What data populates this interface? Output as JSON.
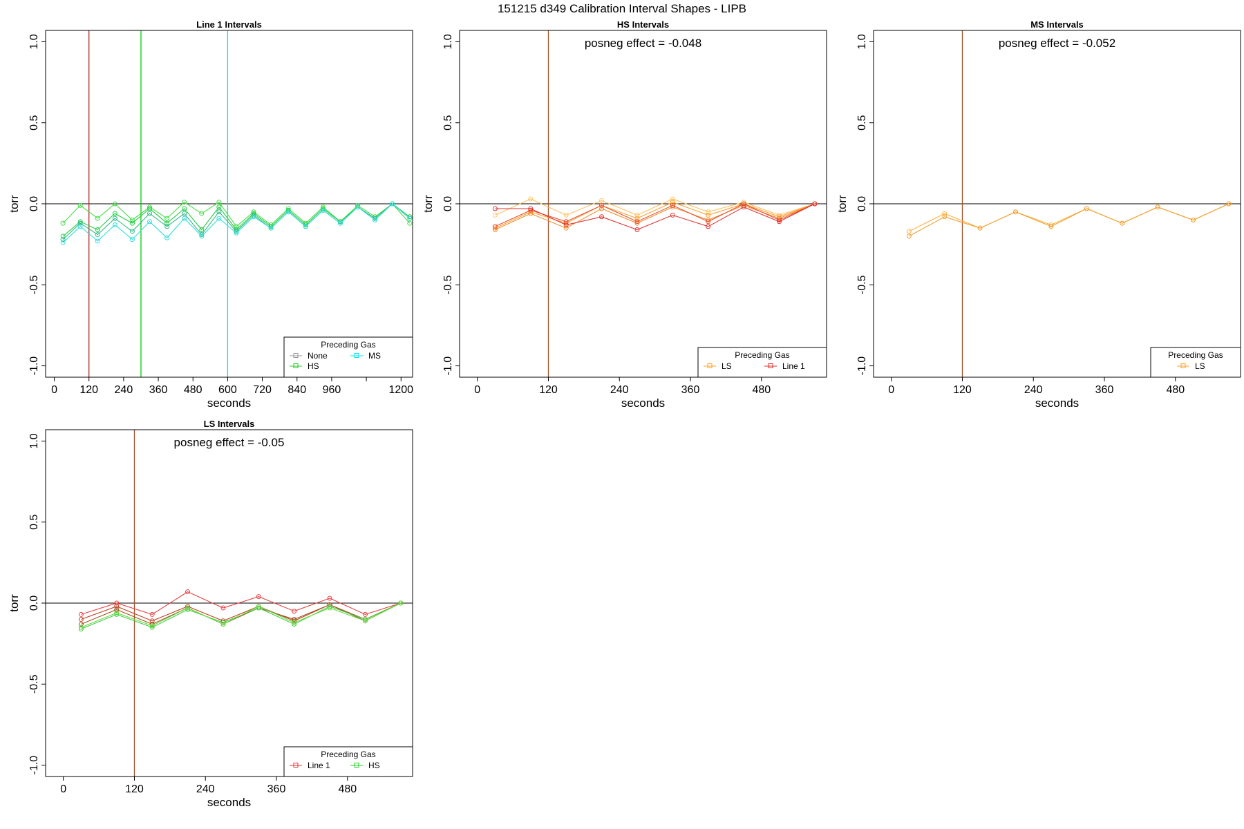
{
  "figure": {
    "title": "151215   d349   Calibration Interval Shapes - LIPB"
  },
  "chart_data": [
    {
      "type": "line",
      "title": "Line 1 Intervals",
      "xlabel": "seconds",
      "ylabel": "torr",
      "xlim": [
        -30,
        1240
      ],
      "ylim": [
        -1.07,
        1.07
      ],
      "xticks": [
        0,
        120,
        240,
        360,
        480,
        600,
        720,
        840,
        960,
        1080,
        1200
      ],
      "xtick_labels": [
        "0",
        "120",
        "240",
        "360",
        "480",
        "600",
        "720",
        "840",
        "960",
        "",
        "1200"
      ],
      "yticks": [
        -1.0,
        -0.5,
        0.0,
        0.5,
        1.0
      ],
      "ytick_labels": [
        "-1.0",
        "-0.5",
        "0.0",
        "0.5",
        "1.0"
      ],
      "hline": 0,
      "vlines": [
        {
          "x": 120,
          "color": "#b22222"
        },
        {
          "x": 300,
          "color": "#00cc00"
        },
        {
          "x": 600,
          "color": "#00e5ee"
        }
      ],
      "annotation": "",
      "legend": {
        "title": "Preceding Gas",
        "position": "bottom-right",
        "columns": 2,
        "entries": [
          {
            "label": "None",
            "color": "#999999"
          },
          {
            "label": "MS",
            "color": "#00e5ee"
          },
          {
            "label": "HS",
            "color": "#22cc22"
          }
        ]
      },
      "x": [
        30,
        90,
        150,
        210,
        270,
        330,
        390,
        450,
        510,
        570,
        630,
        690,
        750,
        810,
        870,
        930,
        990,
        1050,
        1110,
        1170,
        1230
      ],
      "series": [
        {
          "name": "HS",
          "color": "#44dd44",
          "values": [
            -0.12,
            -0.01,
            -0.09,
            0.0,
            -0.1,
            -0.02,
            -0.09,
            0.01,
            -0.06,
            0.01,
            -0.14,
            -0.05,
            -0.13,
            -0.03,
            -0.12,
            -0.02,
            -0.11,
            -0.01,
            -0.08,
            0.0,
            -0.12
          ]
        },
        {
          "name": "HS",
          "color": "#22cc44",
          "values": [
            -0.2,
            -0.11,
            -0.16,
            -0.06,
            -0.12,
            -0.03,
            -0.12,
            -0.03,
            -0.16,
            -0.02,
            -0.16,
            -0.06,
            -0.14,
            -0.04,
            -0.13,
            -0.03,
            -0.11,
            -0.02,
            -0.09,
            0.0,
            -0.08
          ]
        },
        {
          "name": "None",
          "color": "#33bb88",
          "values": [
            -0.22,
            -0.12,
            -0.19,
            -0.09,
            -0.17,
            -0.06,
            -0.14,
            -0.06,
            -0.19,
            -0.05,
            -0.17,
            -0.07,
            -0.15,
            -0.05,
            -0.14,
            -0.04,
            -0.12,
            -0.02,
            -0.09,
            0.0,
            -0.09
          ]
        },
        {
          "name": "MS",
          "color": "#33dddd",
          "values": [
            -0.24,
            -0.14,
            -0.23,
            -0.13,
            -0.22,
            -0.11,
            -0.21,
            -0.09,
            -0.2,
            -0.09,
            -0.18,
            -0.08,
            -0.15,
            -0.05,
            -0.14,
            -0.04,
            -0.12,
            -0.02,
            -0.1,
            0.0,
            -0.09
          ]
        }
      ]
    },
    {
      "type": "line",
      "title": "HS Intervals",
      "xlabel": "seconds",
      "ylabel": "torr",
      "xlim": [
        -30,
        590
      ],
      "ylim": [
        -1.07,
        1.07
      ],
      "xticks": [
        0,
        120,
        240,
        360,
        480
      ],
      "xtick_labels": [
        "0",
        "120",
        "240",
        "360",
        "480"
      ],
      "yticks": [
        -1.0,
        -0.5,
        0.0,
        0.5,
        1.0
      ],
      "ytick_labels": [
        "-1.0",
        "-0.5",
        "0.0",
        "0.5",
        "1.0"
      ],
      "hline": 0,
      "vlines": [
        {
          "x": 120,
          "color": "#a0522d"
        }
      ],
      "annotation": "posneg effect = -0.048",
      "legend": {
        "title": "Preceding Gas",
        "position": "bottom-right",
        "columns": 2,
        "entries": [
          {
            "label": "LS",
            "color": "#ffa020"
          },
          {
            "label": "Line 1",
            "color": "#e03030"
          }
        ]
      },
      "x": [
        30,
        90,
        150,
        210,
        270,
        330,
        390,
        450,
        510,
        570
      ],
      "series": [
        {
          "name": "LS",
          "color": "#ffc060",
          "values": [
            -0.07,
            0.03,
            -0.07,
            0.02,
            -0.07,
            0.03,
            -0.05,
            0.01,
            -0.07,
            0.0
          ]
        },
        {
          "name": "LS",
          "color": "#ffa030",
          "values": [
            -0.15,
            -0.05,
            -0.12,
            -0.01,
            -0.09,
            0.01,
            -0.07,
            0.0,
            -0.08,
            0.0
          ]
        },
        {
          "name": "LS",
          "color": "#f09030",
          "values": [
            -0.16,
            -0.06,
            -0.15,
            -0.03,
            -0.12,
            -0.02,
            -0.1,
            -0.01,
            -0.09,
            0.0
          ]
        },
        {
          "name": "Line 1",
          "color": "#e85030",
          "values": [
            -0.14,
            -0.04,
            -0.11,
            -0.01,
            -0.11,
            -0.01,
            -0.11,
            0.0,
            -0.1,
            0.0
          ]
        },
        {
          "name": "Line 1",
          "color": "#e03030",
          "values": [
            -0.03,
            -0.03,
            -0.13,
            -0.08,
            -0.16,
            -0.07,
            -0.14,
            -0.02,
            -0.11,
            0.0
          ]
        }
      ]
    },
    {
      "type": "line",
      "title": "MS Intervals",
      "xlabel": "seconds",
      "ylabel": "torr",
      "xlim": [
        -30,
        590
      ],
      "ylim": [
        -1.07,
        1.07
      ],
      "xticks": [
        0,
        120,
        240,
        360,
        480
      ],
      "xtick_labels": [
        "0",
        "120",
        "240",
        "360",
        "480"
      ],
      "yticks": [
        -1.0,
        -0.5,
        0.0,
        0.5,
        1.0
      ],
      "ytick_labels": [
        "-1.0",
        "-0.5",
        "0.0",
        "0.5",
        "1.0"
      ],
      "hline": 0,
      "vlines": [
        {
          "x": 120,
          "color": "#a0522d"
        }
      ],
      "annotation": "posneg effect = -0.052",
      "legend": {
        "title": "Preceding Gas",
        "position": "bottom-right",
        "columns": 1,
        "entries": [
          {
            "label": "LS",
            "color": "#ffa020"
          }
        ]
      },
      "x": [
        30,
        90,
        150,
        210,
        270,
        330,
        390,
        450,
        510,
        570
      ],
      "series": [
        {
          "name": "LS",
          "color": "#ffb040",
          "values": [
            -0.17,
            -0.06,
            -0.15,
            -0.05,
            -0.13,
            -0.03,
            -0.12,
            -0.02,
            -0.1,
            0.0
          ]
        },
        {
          "name": "LS",
          "color": "#f0a030",
          "values": [
            -0.2,
            -0.08,
            -0.15,
            -0.05,
            -0.14,
            -0.03,
            -0.12,
            -0.02,
            -0.1,
            0.0
          ]
        }
      ]
    },
    {
      "type": "line",
      "title": "LS Intervals",
      "xlabel": "seconds",
      "ylabel": "torr",
      "xlim": [
        -30,
        590
      ],
      "ylim": [
        -1.07,
        1.07
      ],
      "xticks": [
        0,
        120,
        240,
        360,
        480
      ],
      "xtick_labels": [
        "0",
        "120",
        "240",
        "360",
        "480"
      ],
      "yticks": [
        -1.0,
        -0.5,
        0.0,
        0.5,
        1.0
      ],
      "ytick_labels": [
        "-1.0",
        "-0.5",
        "0.0",
        "0.5",
        "1.0"
      ],
      "hline": 0,
      "vlines": [
        {
          "x": 120,
          "color": "#a0522d"
        }
      ],
      "annotation": "posneg effect = -0.05",
      "legend": {
        "title": "Preceding Gas",
        "position": "bottom-right",
        "columns": 2,
        "entries": [
          {
            "label": "Line 1",
            "color": "#e03030"
          },
          {
            "label": "HS",
            "color": "#22cc22"
          }
        ]
      },
      "x": [
        30,
        90,
        150,
        210,
        270,
        330,
        390,
        450,
        510,
        570
      ],
      "series": [
        {
          "name": "Line 1",
          "color": "#e84040",
          "values": [
            -0.07,
            0.0,
            -0.07,
            0.07,
            -0.03,
            0.04,
            -0.05,
            0.03,
            -0.07,
            0.0
          ]
        },
        {
          "name": "Line 1",
          "color": "#c04020",
          "values": [
            -0.1,
            -0.02,
            -0.11,
            -0.02,
            -0.11,
            -0.02,
            -0.11,
            -0.01,
            -0.1,
            0.0
          ]
        },
        {
          "name": "Line 1",
          "color": "#a05020",
          "values": [
            -0.13,
            -0.04,
            -0.13,
            -0.03,
            -0.13,
            -0.03,
            -0.1,
            -0.01,
            -0.11,
            0.0
          ]
        },
        {
          "name": "HS",
          "color": "#44cc44",
          "values": [
            -0.16,
            -0.07,
            -0.15,
            -0.04,
            -0.12,
            -0.03,
            -0.13,
            -0.02,
            -0.1,
            0.0
          ]
        },
        {
          "name": "HS",
          "color": "#66dd44",
          "values": [
            -0.15,
            -0.06,
            -0.14,
            -0.03,
            -0.13,
            -0.02,
            -0.12,
            -0.03,
            -0.11,
            0.0
          ]
        }
      ]
    }
  ]
}
